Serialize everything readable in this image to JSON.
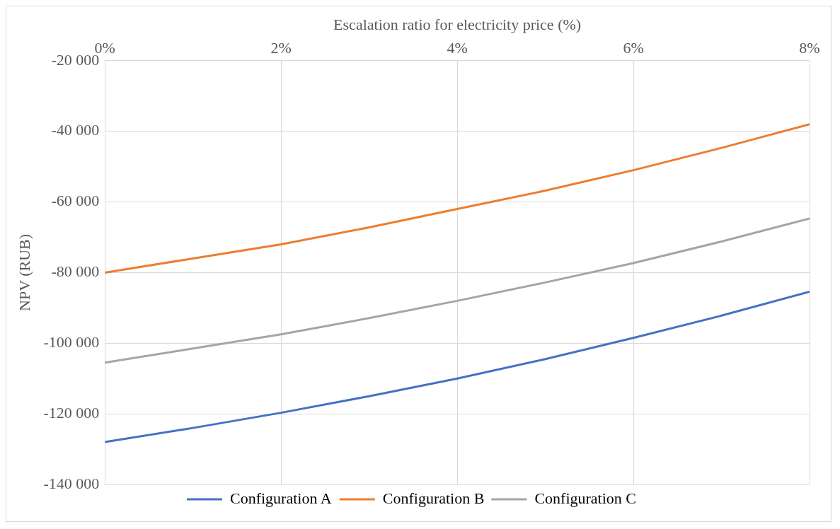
{
  "chart_data": {
    "type": "line",
    "xlabel": "Escalation ratio for electricity price (%)",
    "ylabel": "NPV (RUB)",
    "x": [
      0,
      1,
      2,
      3,
      4,
      5,
      6,
      7,
      8
    ],
    "series": [
      {
        "name": "Configuration A",
        "color": "#4472c4",
        "values": [
          -128000,
          -124000,
          -119700,
          -115000,
          -110000,
          -104500,
          -98500,
          -92200,
          -85400
        ]
      },
      {
        "name": "Configuration B",
        "color": "#ed7d31",
        "values": [
          -80000,
          -76000,
          -72000,
          -67200,
          -62000,
          -56800,
          -51000,
          -44700,
          -38000
        ]
      },
      {
        "name": "Configuration C",
        "color": "#a5a5a5",
        "values": [
          -105500,
          -101500,
          -97500,
          -92900,
          -88000,
          -82800,
          -77300,
          -71200,
          -64700
        ]
      }
    ],
    "xlim": [
      0,
      8
    ],
    "xticks": [
      {
        "value": 0,
        "label": "0%"
      },
      {
        "value": 2,
        "label": "2%"
      },
      {
        "value": 4,
        "label": "4%"
      },
      {
        "value": 6,
        "label": "6%"
      },
      {
        "value": 8,
        "label": "8%"
      }
    ],
    "ylim": [
      -140000,
      -20000
    ],
    "yticks": [
      {
        "value": -140000,
        "label": "-140 000"
      },
      {
        "value": -120000,
        "label": "-120 000"
      },
      {
        "value": -100000,
        "label": "-100 000"
      },
      {
        "value": -80000,
        "label": "-80 000"
      },
      {
        "value": -60000,
        "label": "-60 000"
      },
      {
        "value": -40000,
        "label": "-40 000"
      },
      {
        "value": -20000,
        "label": "-20 000"
      }
    ],
    "grid": true,
    "legend": "bottom",
    "marker": "none",
    "line_style": "solid"
  }
}
